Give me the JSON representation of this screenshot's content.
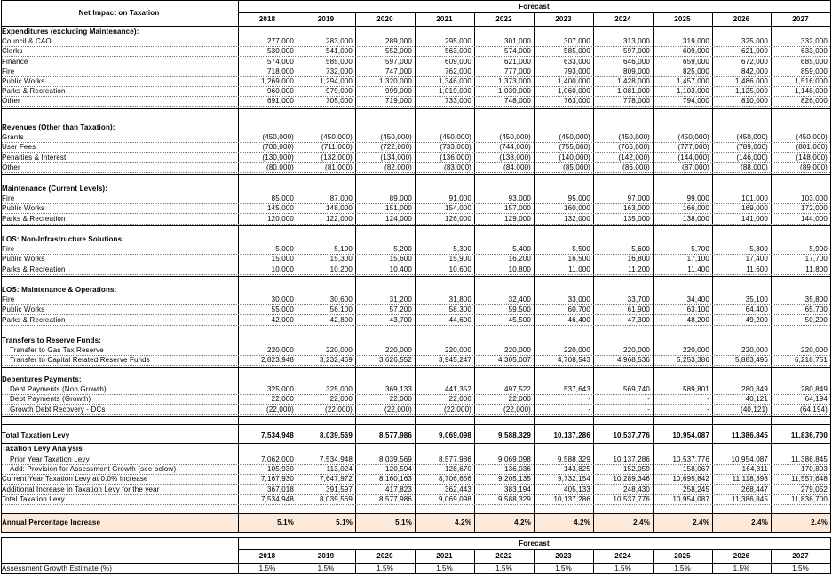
{
  "header": {
    "title": "Net Impact on Taxation",
    "forecast_label": "Forecast",
    "years": [
      "2018",
      "2019",
      "2020",
      "2021",
      "2022",
      "2023",
      "2024",
      "2025",
      "2026",
      "2027"
    ]
  },
  "sections": [
    {
      "title": "Expenditures (excluding Maintenance):",
      "rows": [
        {
          "label": "Council & CAO",
          "values": [
            "277,000",
            "283,000",
            "289,000",
            "295,000",
            "301,000",
            "307,000",
            "313,000",
            "319,000",
            "325,000",
            "332,000"
          ]
        },
        {
          "label": "Clerks",
          "values": [
            "530,000",
            "541,000",
            "552,000",
            "563,000",
            "574,000",
            "585,000",
            "597,000",
            "609,000",
            "621,000",
            "633,000"
          ]
        },
        {
          "label": "Finance",
          "values": [
            "574,000",
            "585,000",
            "597,000",
            "609,000",
            "621,000",
            "633,000",
            "646,000",
            "659,000",
            "672,000",
            "685,000"
          ]
        },
        {
          "label": "Fire",
          "values": [
            "718,000",
            "732,000",
            "747,000",
            "762,000",
            "777,000",
            "793,000",
            "809,000",
            "825,000",
            "842,000",
            "859,000"
          ]
        },
        {
          "label": "Public Works",
          "values": [
            "1,269,000",
            "1,294,000",
            "1,320,000",
            "1,346,000",
            "1,373,000",
            "1,400,000",
            "1,428,000",
            "1,457,000",
            "1,486,000",
            "1,516,000"
          ]
        },
        {
          "label": "Parks & Recreation",
          "values": [
            "960,000",
            "979,000",
            "999,000",
            "1,019,000",
            "1,039,000",
            "1,060,000",
            "1,081,000",
            "1,103,000",
            "1,125,000",
            "1,148,000"
          ]
        },
        {
          "label": "Other",
          "values": [
            "691,000",
            "705,000",
            "719,000",
            "733,000",
            "748,000",
            "763,000",
            "778,000",
            "794,000",
            "810,000",
            "826,000"
          ]
        }
      ]
    },
    {
      "title": "Revenues (Other than Taxation):",
      "rows": [
        {
          "label": "Grants",
          "values": [
            "(450,000)",
            "(450,000)",
            "(450,000)",
            "(450,000)",
            "(450,000)",
            "(450,000)",
            "(450,000)",
            "(450,000)",
            "(450,000)",
            "(450,000)"
          ]
        },
        {
          "label": "User Fees",
          "values": [
            "(700,000)",
            "(711,000)",
            "(722,000)",
            "(733,000)",
            "(744,000)",
            "(755,000)",
            "(766,000)",
            "(777,000)",
            "(789,000)",
            "(801,000)"
          ]
        },
        {
          "label": "Penalties & Interest",
          "values": [
            "(130,000)",
            "(132,000)",
            "(134,000)",
            "(136,000)",
            "(138,000)",
            "(140,000)",
            "(142,000)",
            "(144,000)",
            "(146,000)",
            "(148,000)"
          ]
        },
        {
          "label": "Other",
          "values": [
            "(80,000)",
            "(81,000)",
            "(82,000)",
            "(83,000)",
            "(84,000)",
            "(85,000)",
            "(86,000)",
            "(87,000)",
            "(88,000)",
            "(89,000)"
          ]
        }
      ]
    },
    {
      "title": "Maintenance (Current Levels):",
      "rows": [
        {
          "label": "Fire",
          "values": [
            "85,000",
            "87,000",
            "89,000",
            "91,000",
            "93,000",
            "95,000",
            "97,000",
            "99,000",
            "101,000",
            "103,000"
          ]
        },
        {
          "label": "Public Works",
          "values": [
            "145,000",
            "148,000",
            "151,000",
            "154,000",
            "157,000",
            "160,000",
            "163,000",
            "166,000",
            "169,000",
            "172,000"
          ]
        },
        {
          "label": "Parks & Recreation",
          "values": [
            "120,000",
            "122,000",
            "124,000",
            "126,000",
            "129,000",
            "132,000",
            "135,000",
            "138,000",
            "141,000",
            "144,000"
          ]
        }
      ]
    },
    {
      "title": "LOS: Non-Infrastructure Solutions:",
      "rows": [
        {
          "label": "Fire",
          "values": [
            "5,000",
            "5,100",
            "5,200",
            "5,300",
            "5,400",
            "5,500",
            "5,600",
            "5,700",
            "5,800",
            "5,900"
          ]
        },
        {
          "label": "Public Works",
          "values": [
            "15,000",
            "15,300",
            "15,600",
            "15,900",
            "16,200",
            "16,500",
            "16,800",
            "17,100",
            "17,400",
            "17,700"
          ]
        },
        {
          "label": "Parks & Recreation",
          "values": [
            "10,000",
            "10,200",
            "10,400",
            "10,600",
            "10,800",
            "11,000",
            "11,200",
            "11,400",
            "11,600",
            "11,800"
          ]
        }
      ]
    },
    {
      "title": "LOS: Maintenance & Operations:",
      "rows": [
        {
          "label": "Fire",
          "values": [
            "30,000",
            "30,600",
            "31,200",
            "31,800",
            "32,400",
            "33,000",
            "33,700",
            "34,400",
            "35,100",
            "35,800"
          ]
        },
        {
          "label": "Public Works",
          "values": [
            "55,000",
            "56,100",
            "57,200",
            "58,300",
            "59,500",
            "60,700",
            "61,900",
            "63,100",
            "64,400",
            "65,700"
          ]
        },
        {
          "label": "Parks & Recreation",
          "values": [
            "42,000",
            "42,800",
            "43,700",
            "44,600",
            "45,500",
            "46,400",
            "47,300",
            "48,200",
            "49,200",
            "50,200"
          ]
        }
      ]
    },
    {
      "title": "Transfers to Reserve Funds:",
      "rows": [
        {
          "label": "Transfer to Gas Tax Reserve",
          "values": [
            "220,000",
            "220,000",
            "220,000",
            "220,000",
            "220,000",
            "220,000",
            "220,000",
            "220,000",
            "220,000",
            "220,000"
          ]
        },
        {
          "label": "Transfer to Capital Related Reserve Funds",
          "values": [
            "2,823,948",
            "3,232,469",
            "3,626,552",
            "3,945,247",
            "4,305,007",
            "4,708,543",
            "4,968,536",
            "5,253,386",
            "5,883,496",
            "6,218,751"
          ]
        }
      ]
    },
    {
      "title": "Debentures Payments:",
      "rows": [
        {
          "label": "Debt Payments (Non Growth)",
          "values": [
            "325,000",
            "325,000",
            "369,133",
            "441,352",
            "497,522",
            "537,643",
            "569,740",
            "589,801",
            "280,849",
            "280,849"
          ]
        },
        {
          "label": "Debt Payments (Growth)",
          "values": [
            "22,000",
            "22,000",
            "22,000",
            "22,000",
            "22,000",
            "-",
            "-",
            "-",
            "40,121",
            "64,194"
          ]
        },
        {
          "label": "Growth Debt Recovery - DCs",
          "values": [
            "(22,000)",
            "(22,000)",
            "(22,000)",
            "(22,000)",
            "(22,000)",
            "-",
            "-",
            "-",
            "(40,121)",
            "(64,194)"
          ]
        }
      ]
    }
  ],
  "total_levy": {
    "label": "Total Taxation Levy",
    "values": [
      "7,534,948",
      "8,039,569",
      "8,577,986",
      "9,069,098",
      "9,588,329",
      "10,137,286",
      "10,537,776",
      "10,954,087",
      "11,386,845",
      "11,836,700"
    ]
  },
  "analysis": {
    "title": "Taxation Levy Analysis",
    "rows": [
      {
        "label": "Prior Year Taxation Levy",
        "values": [
          "7,062,000",
          "7,534,948",
          "8,039,569",
          "8,577,986",
          "9,069,098",
          "9,588,329",
          "10,137,286",
          "10,537,776",
          "10,954,087",
          "11,386,845"
        ]
      },
      {
        "label": "Add: Provision for Assessment Growth (see below)",
        "values": [
          "105,930",
          "113,024",
          "120,594",
          "128,670",
          "136,036",
          "143,825",
          "152,059",
          "158,067",
          "164,311",
          "170,803"
        ]
      },
      {
        "label": "Current Year Taxation Levy at 0.0% Increase",
        "values": [
          "7,167,930",
          "7,647,972",
          "8,160,163",
          "8,706,656",
          "9,205,135",
          "9,732,154",
          "10,289,346",
          "10,695,842",
          "11,118,398",
          "11,557,648"
        ]
      },
      {
        "label": "Additional Increase in Taxation Levy for the year",
        "values": [
          "367,018",
          "391,597",
          "417,823",
          "362,443",
          "383,194",
          "405,133",
          "248,430",
          "258,245",
          "268,447",
          "279,052"
        ]
      },
      {
        "label": "Total Taxation Levy",
        "values": [
          "7,534,948",
          "8,039,569",
          "8,577,986",
          "9,069,098",
          "9,588,329",
          "10,137,286",
          "10,537,776",
          "10,954,087",
          "11,386,845",
          "11,836,700"
        ]
      }
    ]
  },
  "annual_increase": {
    "label": "Annual Percentage Increase",
    "values": [
      "5.1%",
      "5.1%",
      "5.1%",
      "4.2%",
      "4.2%",
      "4.2%",
      "2.4%",
      "2.4%",
      "2.4%",
      "2.4%"
    ]
  },
  "growth_table": {
    "forecast_label": "Forecast",
    "years": [
      "2018",
      "2019",
      "2020",
      "2021",
      "2022",
      "2023",
      "2024",
      "2025",
      "2026",
      "2027"
    ],
    "label": "Assessment Growth Estimate (%)",
    "values": [
      "1.5%",
      "1.5%",
      "1.5%",
      "1.5%",
      "1.5%",
      "1.5%",
      "1.5%",
      "1.5%",
      "1.5%",
      "1.5%"
    ]
  },
  "colors": {
    "highlight_band": "#fde9d9",
    "grid": "#000000"
  }
}
